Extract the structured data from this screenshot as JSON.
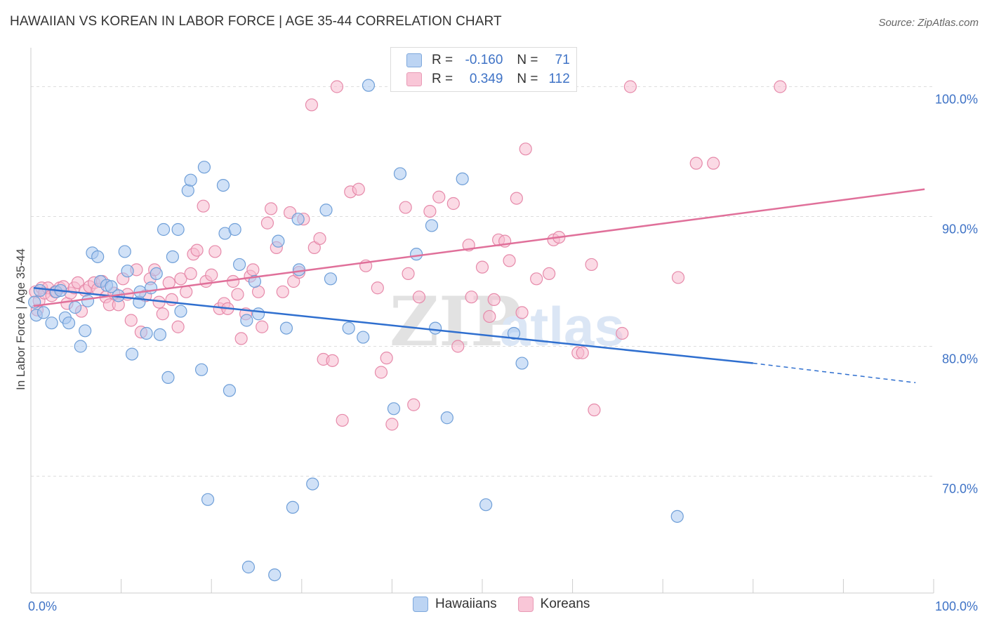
{
  "header": {
    "title": "HAWAIIAN VS KOREAN IN LABOR FORCE | AGE 35-44 CORRELATION CHART",
    "source": "Source: ZipAtlas.com"
  },
  "legend": {
    "rows": [
      {
        "r_label": "R =",
        "r_value": "-0.160",
        "n_label": "N =",
        "n_value": "71"
      },
      {
        "r_label": "R =",
        "r_value": "0.349",
        "n_label": "N =",
        "n_value": "112"
      }
    ],
    "bottom": [
      "Hawaiians",
      "Koreans"
    ]
  },
  "watermark": {
    "zip": "ZIP",
    "atlas": "atlas"
  },
  "colors": {
    "hawaiian_fill": "#aac8f0",
    "hawaiian_stroke": "#6f9fd8",
    "hawaiian_line": "#2f6fcf",
    "korean_fill": "#f7bcd0",
    "korean_stroke": "#e68aaa",
    "korean_line": "#e0709a",
    "tick_text": "#3f73c6",
    "grid": "#dddddd"
  },
  "chart_data": {
    "type": "scatter",
    "xlabel": "",
    "ylabel": "In Labor Force | Age 35-44",
    "xlim": [
      0,
      100
    ],
    "ylim": [
      61,
      103
    ],
    "x_ticks": [
      "0.0%",
      "100.0%"
    ],
    "y_ticks": [
      {
        "value": 70,
        "label": "70.0%"
      },
      {
        "value": 80,
        "label": "80.0%"
      },
      {
        "value": 90,
        "label": "90.0%"
      },
      {
        "value": 100,
        "label": "100.0%"
      }
    ],
    "grid": true,
    "series": [
      {
        "name": "Hawaiians",
        "trend": {
          "x0": 0.3,
          "y0": 84.5,
          "x1": 80,
          "y1": 78.7,
          "dash_to_x": 98,
          "dash_to_y": 77.2
        },
        "points": [
          [
            0.4,
            83.4
          ],
          [
            0.6,
            82.4
          ],
          [
            1.0,
            84.3
          ],
          [
            1.4,
            82.6
          ],
          [
            2.3,
            81.8
          ],
          [
            2.8,
            84.2
          ],
          [
            3.3,
            84.3
          ],
          [
            3.8,
            82.2
          ],
          [
            4.2,
            81.8
          ],
          [
            4.9,
            83.0
          ],
          [
            5.5,
            80.0
          ],
          [
            6.0,
            81.2
          ],
          [
            6.3,
            83.5
          ],
          [
            6.8,
            87.2
          ],
          [
            7.4,
            86.9
          ],
          [
            7.7,
            85.0
          ],
          [
            8.4,
            84.7
          ],
          [
            8.9,
            84.6
          ],
          [
            9.7,
            83.9
          ],
          [
            10.4,
            87.3
          ],
          [
            10.7,
            85.8
          ],
          [
            11.2,
            79.4
          ],
          [
            12.0,
            83.4
          ],
          [
            12.1,
            84.2
          ],
          [
            12.8,
            81.0
          ],
          [
            13.3,
            84.5
          ],
          [
            13.9,
            85.6
          ],
          [
            14.3,
            80.9
          ],
          [
            14.7,
            89.0
          ],
          [
            15.2,
            77.6
          ],
          [
            15.7,
            86.9
          ],
          [
            16.3,
            89.0
          ],
          [
            16.6,
            82.7
          ],
          [
            17.4,
            92.0
          ],
          [
            17.7,
            92.8
          ],
          [
            18.9,
            78.2
          ],
          [
            19.2,
            93.8
          ],
          [
            19.6,
            68.2
          ],
          [
            21.3,
            92.4
          ],
          [
            21.5,
            88.7
          ],
          [
            22.0,
            76.6
          ],
          [
            22.6,
            89.0
          ],
          [
            23.1,
            86.3
          ],
          [
            23.9,
            82.0
          ],
          [
            24.1,
            63.0
          ],
          [
            24.8,
            85.0
          ],
          [
            25.2,
            82.5
          ],
          [
            27.0,
            62.4
          ],
          [
            27.4,
            88.1
          ],
          [
            28.3,
            81.4
          ],
          [
            29.0,
            67.6
          ],
          [
            29.6,
            89.8
          ],
          [
            29.7,
            85.9
          ],
          [
            31.2,
            69.4
          ],
          [
            32.7,
            90.5
          ],
          [
            33.2,
            85.2
          ],
          [
            35.2,
            81.4
          ],
          [
            36.8,
            80.7
          ],
          [
            37.4,
            100.1
          ],
          [
            40.2,
            75.2
          ],
          [
            40.9,
            93.3
          ],
          [
            42.7,
            87.1
          ],
          [
            44.4,
            89.3
          ],
          [
            44.8,
            81.4
          ],
          [
            46.1,
            74.5
          ],
          [
            47.8,
            92.9
          ],
          [
            50.4,
            67.8
          ],
          [
            53.5,
            81.0
          ],
          [
            54.4,
            78.7
          ],
          [
            71.6,
            66.9
          ],
          [
            55.0,
            100.2
          ]
        ]
      },
      {
        "name": "Koreans",
        "trend": {
          "x0": 0.3,
          "y0": 83.1,
          "x1": 99,
          "y1": 92.1
        },
        "points": [
          [
            0.5,
            84.2
          ],
          [
            0.7,
            82.8
          ],
          [
            0.9,
            83.5
          ],
          [
            1.2,
            84.5
          ],
          [
            1.5,
            84.1
          ],
          [
            1.9,
            84.5
          ],
          [
            2.3,
            83.9
          ],
          [
            2.7,
            84.2
          ],
          [
            3.2,
            84.5
          ],
          [
            3.6,
            84.6
          ],
          [
            4.0,
            83.3
          ],
          [
            4.4,
            84.1
          ],
          [
            4.8,
            84.5
          ],
          [
            5.2,
            84.9
          ],
          [
            5.6,
            82.7
          ],
          [
            6.0,
            84.3
          ],
          [
            6.5,
            84.6
          ],
          [
            7.0,
            84.9
          ],
          [
            7.4,
            84.4
          ],
          [
            7.9,
            85.0
          ],
          [
            8.3,
            83.8
          ],
          [
            8.7,
            83.2
          ],
          [
            9.2,
            84.1
          ],
          [
            9.7,
            83.2
          ],
          [
            10.2,
            85.2
          ],
          [
            10.7,
            84.0
          ],
          [
            11.1,
            82.0
          ],
          [
            11.7,
            85.9
          ],
          [
            12.2,
            81.1
          ],
          [
            12.7,
            83.9
          ],
          [
            13.2,
            85.2
          ],
          [
            13.7,
            85.9
          ],
          [
            14.2,
            83.4
          ],
          [
            14.6,
            82.5
          ],
          [
            15.3,
            84.9
          ],
          [
            15.6,
            83.6
          ],
          [
            16.3,
            81.5
          ],
          [
            16.6,
            85.2
          ],
          [
            17.2,
            84.2
          ],
          [
            17.7,
            85.6
          ],
          [
            18.0,
            87.1
          ],
          [
            18.4,
            87.4
          ],
          [
            19.1,
            90.8
          ],
          [
            19.4,
            85.0
          ],
          [
            20.0,
            85.5
          ],
          [
            20.4,
            87.3
          ],
          [
            20.9,
            82.9
          ],
          [
            21.4,
            83.3
          ],
          [
            21.8,
            82.9
          ],
          [
            22.4,
            85.0
          ],
          [
            22.9,
            84.0
          ],
          [
            23.3,
            80.6
          ],
          [
            23.8,
            82.5
          ],
          [
            24.3,
            85.4
          ],
          [
            24.6,
            85.9
          ],
          [
            25.2,
            84.2
          ],
          [
            25.6,
            81.5
          ],
          [
            26.2,
            89.5
          ],
          [
            26.6,
            90.6
          ],
          [
            27.2,
            87.6
          ],
          [
            27.9,
            84.2
          ],
          [
            28.7,
            90.3
          ],
          [
            29.1,
            85.0
          ],
          [
            29.7,
            85.7
          ],
          [
            30.2,
            89.8
          ],
          [
            31.1,
            98.6
          ],
          [
            31.4,
            87.6
          ],
          [
            32.0,
            88.3
          ],
          [
            32.4,
            79.0
          ],
          [
            33.4,
            78.9
          ],
          [
            33.9,
            100.0
          ],
          [
            34.5,
            74.3
          ],
          [
            35.4,
            91.9
          ],
          [
            36.3,
            92.1
          ],
          [
            37.1,
            86.2
          ],
          [
            38.4,
            84.5
          ],
          [
            38.8,
            78.0
          ],
          [
            39.4,
            79.1
          ],
          [
            40.0,
            74.0
          ],
          [
            41.5,
            90.7
          ],
          [
            41.8,
            85.6
          ],
          [
            42.4,
            75.5
          ],
          [
            43.0,
            83.8
          ],
          [
            44.2,
            90.4
          ],
          [
            45.2,
            91.5
          ],
          [
            46.8,
            91.0
          ],
          [
            47.3,
            80.0
          ],
          [
            48.5,
            87.8
          ],
          [
            48.8,
            83.8
          ],
          [
            50.0,
            86.1
          ],
          [
            50.8,
            82.3
          ],
          [
            51.3,
            83.6
          ],
          [
            51.8,
            88.2
          ],
          [
            52.5,
            88.1
          ],
          [
            53.0,
            86.6
          ],
          [
            53.8,
            91.4
          ],
          [
            54.4,
            82.6
          ],
          [
            54.8,
            95.2
          ],
          [
            56.0,
            85.2
          ],
          [
            57.4,
            85.6
          ],
          [
            57.9,
            88.2
          ],
          [
            58.5,
            88.4
          ],
          [
            60.6,
            79.5
          ],
          [
            61.1,
            79.5
          ],
          [
            62.1,
            86.3
          ],
          [
            62.4,
            75.1
          ],
          [
            65.5,
            81.0
          ],
          [
            66.4,
            100.0
          ],
          [
            71.7,
            85.3
          ],
          [
            73.7,
            94.1
          ],
          [
            75.6,
            94.1
          ],
          [
            83.0,
            100.0
          ]
        ]
      }
    ]
  }
}
